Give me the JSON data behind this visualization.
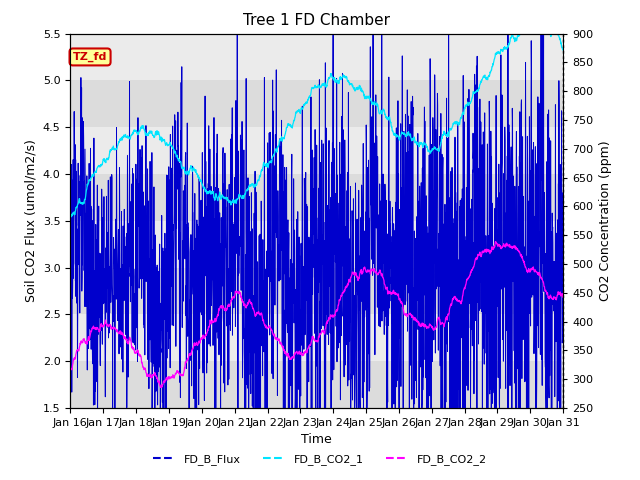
{
  "title": "Tree 1 FD Chamber",
  "xlabel": "Time",
  "ylabel_left": "Soil CO2 Flux (umol/m2/s)",
  "ylabel_right": "CO2 Concentration (ppm)",
  "ylim_left": [
    1.5,
    5.5
  ],
  "ylim_right": [
    250,
    900
  ],
  "n_days": 15,
  "xtick_labels": [
    "Jan 16",
    "Jan 17",
    "Jan 18",
    "Jan 19",
    "Jan 20",
    "Jan 21",
    "Jan 22",
    "Jan 23",
    "Jan 24",
    "Jan 25",
    "Jan 26",
    "Jan 27",
    "Jan 28",
    "Jan 29",
    "Jan 30",
    "Jan 31"
  ],
  "series_colors": {
    "FD_B_Flux": "#0000cc",
    "FD_B_CO2_1": "#00e5ff",
    "FD_B_CO2_2": "#ff00ff"
  },
  "legend_labels": [
    "FD_B_Flux",
    "FD_B_CO2_1",
    "FD_B_CO2_2"
  ],
  "annotation_text": "TZ_fd",
  "annotation_color": "#cc0000",
  "annotation_bg": "#ffff99",
  "band_colors": [
    "#dcdcdc",
    "#ebebeb"
  ],
  "title_fontsize": 11,
  "label_fontsize": 9,
  "tick_fontsize": 8,
  "linewidth": 0.7
}
